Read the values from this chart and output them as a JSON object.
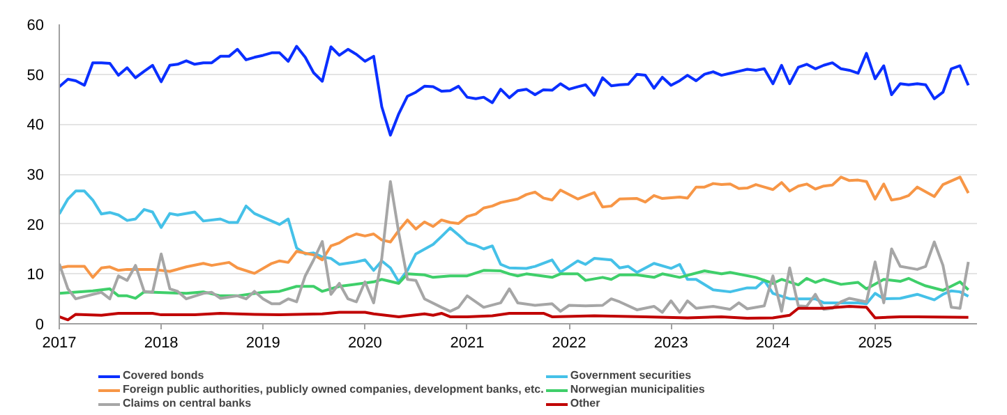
{
  "chart_data": {
    "type": "line",
    "xlim": [
      "2017-01",
      "2026-01"
    ],
    "ylim": [
      0,
      60
    ],
    "yticks": [
      0,
      10,
      20,
      30,
      40,
      50,
      60
    ],
    "xticks": [
      "2017",
      "2018",
      "2019",
      "2020",
      "2021",
      "2022",
      "2023",
      "2024",
      "2025"
    ],
    "grid": "y",
    "legend": "bottom",
    "series": [
      {
        "name": "Covered bonds",
        "color": "#0a2fff",
        "x": [
          "2017-01",
          "2017-02",
          "2017-03",
          "2017-04",
          "2017-05",
          "2017-06",
          "2017-07",
          "2017-08",
          "2017-09",
          "2017-10",
          "2017-11",
          "2017-12",
          "2018-01",
          "2018-02",
          "2018-03",
          "2018-04",
          "2018-05",
          "2018-06",
          "2018-07",
          "2018-08",
          "2018-09",
          "2018-10",
          "2018-11",
          "2018-12",
          "2019-01",
          "2019-02",
          "2019-03",
          "2019-04",
          "2019-05",
          "2019-06",
          "2019-07",
          "2019-08",
          "2019-09",
          "2019-10",
          "2019-11",
          "2019-12",
          "2020-01",
          "2020-02",
          "2020-03",
          "2020-04",
          "2020-05",
          "2020-06",
          "2020-07",
          "2020-08",
          "2020-09",
          "2020-10",
          "2020-11",
          "2020-12",
          "2021-01",
          "2021-02",
          "2021-03",
          "2021-04",
          "2021-05",
          "2021-06",
          "2021-07",
          "2021-08",
          "2021-09",
          "2021-10",
          "2021-11",
          "2021-12",
          "2022-01",
          "2022-02",
          "2022-03",
          "2022-04",
          "2022-05",
          "2022-06",
          "2022-07",
          "2022-08",
          "2022-09",
          "2022-10",
          "2022-11",
          "2022-12",
          "2023-01",
          "2023-02",
          "2023-03",
          "2023-04",
          "2023-05",
          "2023-06",
          "2023-07",
          "2023-08",
          "2023-09",
          "2023-10",
          "2023-11",
          "2023-12",
          "2024-01",
          "2024-02",
          "2024-03",
          "2024-04",
          "2024-05",
          "2024-06",
          "2024-07",
          "2024-08",
          "2024-09",
          "2024-10",
          "2024-11",
          "2024-12",
          "2025-01",
          "2025-02",
          "2025-03",
          "2025-04",
          "2025-05",
          "2025-06",
          "2025-07",
          "2025-08",
          "2025-09",
          "2025-10",
          "2025-11",
          "2025-12"
        ],
        "values": [
          47.5,
          49,
          48.7,
          47.8,
          52.3,
          52.3,
          52.2,
          49.8,
          51.3,
          49.3,
          50.6,
          51.8,
          48.5,
          51.8,
          52,
          52.7,
          52,
          52.3,
          52.3,
          53.6,
          53.6,
          55,
          52.9,
          53.4,
          53.8,
          54.3,
          54.3,
          52.6,
          55.6,
          53.4,
          50.3,
          48.6,
          55.5,
          53.8,
          55,
          54,
          52.6,
          53.6,
          43.5,
          37.8,
          42.1,
          45.6,
          46.4,
          47.6,
          47.5,
          46.6,
          46.7,
          47.6,
          45.4,
          45.1,
          45.4,
          44.3,
          47,
          45.3,
          46.7,
          47,
          45.9,
          46.9,
          46.8,
          48.1,
          47,
          47.5,
          47.9,
          45.8,
          49.3,
          47.7,
          47.9,
          48,
          50,
          49.8,
          47.2,
          49.4,
          47.8,
          48.7,
          49.8,
          48.7,
          50,
          50.5,
          49.8,
          50.2,
          50.6,
          51,
          50.8,
          51.1,
          48.1,
          51.8,
          48.1,
          51.4,
          52,
          51.1,
          51.8,
          52.3,
          51.1,
          50.8,
          50.2,
          54.2,
          49.1,
          51.7,
          45.9,
          48.1,
          47.9,
          48.1,
          47.9,
          45.1,
          46.4,
          51.1,
          51.7,
          47.8
        ]
      },
      {
        "name": "Government securities",
        "color": "#45c1e8",
        "x": [
          "2017-01",
          "2017-02",
          "2017-03",
          "2017-04",
          "2017-05",
          "2017-06",
          "2017-07",
          "2017-08",
          "2017-09",
          "2017-10",
          "2017-11",
          "2017-12",
          "2018-01",
          "2018-02",
          "2018-03",
          "2018-05",
          "2018-06",
          "2018-08",
          "2018-09",
          "2018-10",
          "2018-11",
          "2018-12",
          "2019-03",
          "2019-04",
          "2019-05",
          "2019-06",
          "2019-07",
          "2019-08",
          "2019-09",
          "2019-10",
          "2019-12",
          "2020-01",
          "2020-02",
          "2020-03",
          "2020-04",
          "2020-05",
          "2020-06",
          "2020-07",
          "2020-09",
          "2020-10",
          "2020-11",
          "2020-12",
          "2021-01",
          "2021-02",
          "2021-03",
          "2021-04",
          "2021-05",
          "2021-06",
          "2021-08",
          "2021-09",
          "2021-11",
          "2021-12",
          "2022-02",
          "2022-03",
          "2022-04",
          "2022-06",
          "2022-07",
          "2022-08",
          "2022-09",
          "2022-11",
          "2023-01",
          "2023-02",
          "2023-03",
          "2023-04",
          "2023-06",
          "2023-08",
          "2023-10",
          "2023-11",
          "2023-12",
          "2024-01",
          "2024-03",
          "2024-06",
          "2024-07",
          "2024-11",
          "2024-12",
          "2025-01",
          "2025-02",
          "2025-04",
          "2025-06",
          "2025-08",
          "2025-09",
          "2025-10",
          "2025-11",
          "2025-12"
        ],
        "values": [
          22,
          25,
          26.6,
          26.6,
          24.8,
          22,
          22.3,
          21.8,
          20.7,
          21,
          22.9,
          22.4,
          19.3,
          22.1,
          21.8,
          22.4,
          20.6,
          21,
          20.3,
          20.3,
          23.6,
          22.1,
          19.9,
          21,
          15.2,
          14,
          14.2,
          13.4,
          13.1,
          11.9,
          12.4,
          12.8,
          10.7,
          12.6,
          11.2,
          8.4,
          10.7,
          14,
          15.9,
          17.5,
          19.2,
          17.8,
          16.2,
          15.7,
          15,
          15.6,
          11.9,
          11.2,
          11.1,
          11.5,
          12.8,
          10.3,
          12.6,
          11.9,
          13.1,
          12.8,
          11.2,
          11.5,
          10.3,
          12.1,
          11.1,
          11.9,
          8.9,
          8.9,
          6.8,
          6.4,
          7.2,
          7.2,
          8.7,
          6.1,
          5,
          5,
          4.2,
          4.2,
          4,
          6.1,
          5,
          5.1,
          5.9,
          4.8,
          5.9,
          6.6,
          6.4,
          5.5
        ]
      },
      {
        "name": "Foreign public authorities, publicly owned companies, development banks, etc.",
        "color": "#f79646",
        "x": [
          "2017-01",
          "2017-02",
          "2017-04",
          "2017-05",
          "2017-06",
          "2017-07",
          "2017-08",
          "2017-09",
          "2017-12",
          "2018-02",
          "2018-04",
          "2018-06",
          "2018-07",
          "2018-09",
          "2018-10",
          "2018-12",
          "2019-02",
          "2019-03",
          "2019-04",
          "2019-05",
          "2019-07",
          "2019-08",
          "2019-09",
          "2019-10",
          "2019-11",
          "2019-12",
          "2020-01",
          "2020-02",
          "2020-03",
          "2020-04",
          "2020-05",
          "2020-06",
          "2020-07",
          "2020-08",
          "2020-09",
          "2020-10",
          "2020-11",
          "2020-12",
          "2021-01",
          "2021-02",
          "2021-03",
          "2021-04",
          "2021-05",
          "2021-07",
          "2021-08",
          "2021-09",
          "2021-10",
          "2021-11",
          "2021-12",
          "2022-02",
          "2022-04",
          "2022-05",
          "2022-06",
          "2022-07",
          "2022-09",
          "2022-10",
          "2022-11",
          "2022-12",
          "2023-02",
          "2023-03",
          "2023-04",
          "2023-05",
          "2023-06",
          "2023-07",
          "2023-08",
          "2023-09",
          "2023-10",
          "2023-11",
          "2023-12",
          "2024-01",
          "2024-02",
          "2024-03",
          "2024-04",
          "2024-05",
          "2024-06",
          "2024-07",
          "2024-08",
          "2024-09",
          "2024-10",
          "2024-11",
          "2024-12",
          "2025-01",
          "2025-02",
          "2025-03",
          "2025-04",
          "2025-05",
          "2025-06",
          "2025-08",
          "2025-09",
          "2025-11",
          "2025-12"
        ],
        "values": [
          11.2,
          11.5,
          11.5,
          9.3,
          11.2,
          11.4,
          10.7,
          10.9,
          10.9,
          10.5,
          11.4,
          12.1,
          11.7,
          12.3,
          11.2,
          10.1,
          12.1,
          12.6,
          12.3,
          14.5,
          13.8,
          12.8,
          15.6,
          16.2,
          17.3,
          18,
          17.6,
          18,
          16.8,
          16.4,
          18.7,
          20.8,
          19,
          20.4,
          19.5,
          20.8,
          20.3,
          20.1,
          21.5,
          22,
          23.2,
          23.6,
          24.3,
          25,
          25.9,
          26.4,
          25.2,
          24.8,
          26.8,
          25,
          26.3,
          23.4,
          23.6,
          25,
          25.1,
          24.4,
          25.7,
          25.1,
          25.4,
          25.2,
          27.4,
          27.4,
          28.1,
          27.9,
          28,
          27.1,
          27.2,
          27.9,
          27.4,
          26.9,
          28.3,
          26.6,
          27.6,
          28,
          27,
          27.6,
          27.8,
          29.4,
          28.7,
          28.8,
          28.5,
          25,
          28,
          24.8,
          25.1,
          25.7,
          27.4,
          25.5,
          27.9,
          29.4,
          26.2
        ]
      },
      {
        "name": "Norwegian municipalities",
        "color": "#3fcf6a",
        "x": [
          "2017-01",
          "2017-05",
          "2017-07",
          "2017-08",
          "2017-09",
          "2017-10",
          "2017-11",
          "2018-04",
          "2018-06",
          "2018-08",
          "2018-10",
          "2019-01",
          "2019-03",
          "2019-05",
          "2019-07",
          "2019-08",
          "2019-10",
          "2020-02",
          "2020-03",
          "2020-05",
          "2020-06",
          "2020-08",
          "2020-09",
          "2020-11",
          "2021-01",
          "2021-03",
          "2021-05",
          "2021-06",
          "2021-07",
          "2021-08",
          "2021-11",
          "2021-12",
          "2022-02",
          "2022-03",
          "2022-05",
          "2022-06",
          "2022-07",
          "2022-09",
          "2022-11",
          "2022-12",
          "2023-02",
          "2023-05",
          "2023-07",
          "2023-08",
          "2023-11",
          "2024-01",
          "2024-02",
          "2024-04",
          "2024-05",
          "2024-06",
          "2024-07",
          "2024-09",
          "2024-11",
          "2024-12",
          "2025-02",
          "2025-04",
          "2025-05",
          "2025-06",
          "2025-07",
          "2025-09",
          "2025-11",
          "2025-12"
        ],
        "values": [
          6.1,
          6.6,
          7,
          5.6,
          5.6,
          5.1,
          6.4,
          6.1,
          6.4,
          5.6,
          5.6,
          6.3,
          6.5,
          7.5,
          7.5,
          6.5,
          7.5,
          8.4,
          8.9,
          8.1,
          10,
          9.8,
          9.3,
          9.6,
          9.6,
          10.7,
          10.6,
          10,
          9.6,
          10,
          9.3,
          10,
          10,
          8.7,
          9.3,
          8.9,
          9.8,
          9.8,
          9.3,
          10,
          9.3,
          10.6,
          10,
          10.3,
          9.3,
          8.1,
          8.9,
          7.8,
          9.1,
          8.3,
          8.9,
          7.9,
          8.3,
          7,
          8.9,
          8.5,
          9.1,
          8.3,
          7.6,
          6.7,
          8.4,
          6.8
        ]
      },
      {
        "name": "Claims on central banks",
        "color": "#a6a6a6",
        "x": [
          "2017-01",
          "2017-02",
          "2017-03",
          "2017-05",
          "2017-06",
          "2017-07",
          "2017-08",
          "2017-09",
          "2017-10",
          "2017-11",
          "2017-12",
          "2018-01",
          "2018-02",
          "2018-03",
          "2018-04",
          "2018-06",
          "2018-07",
          "2018-08",
          "2018-10",
          "2018-11",
          "2018-12",
          "2019-01",
          "2019-02",
          "2019-03",
          "2019-04",
          "2019-05",
          "2019-06",
          "2019-07",
          "2019-08",
          "2019-09",
          "2019-10",
          "2019-11",
          "2019-12",
          "2020-01",
          "2020-02",
          "2020-03",
          "2020-04",
          "2020-05",
          "2020-06",
          "2020-07",
          "2020-08",
          "2020-10",
          "2020-11",
          "2020-12",
          "2021-01",
          "2021-03",
          "2021-05",
          "2021-06",
          "2021-07",
          "2021-09",
          "2021-11",
          "2021-12",
          "2022-01",
          "2022-03",
          "2022-05",
          "2022-06",
          "2022-07",
          "2022-09",
          "2022-11",
          "2022-12",
          "2023-01",
          "2023-02",
          "2023-03",
          "2023-04",
          "2023-06",
          "2023-08",
          "2023-09",
          "2023-10",
          "2023-12",
          "2024-01",
          "2024-02",
          "2024-03",
          "2024-04",
          "2024-05",
          "2024-06",
          "2024-07",
          "2024-08",
          "2024-09",
          "2024-10",
          "2024-12",
          "2025-01",
          "2025-02",
          "2025-03",
          "2025-04",
          "2025-06",
          "2025-07",
          "2025-08",
          "2025-09",
          "2025-10",
          "2025-11",
          "2025-12"
        ],
        "values": [
          12,
          7,
          5,
          5.9,
          6.3,
          5,
          9.6,
          8.7,
          11.7,
          6.5,
          6.3,
          14,
          7,
          6.5,
          5,
          6.1,
          6.3,
          5.1,
          5.6,
          5,
          6.5,
          5,
          4,
          4,
          5,
          4.4,
          9.6,
          12.8,
          16.5,
          5.9,
          8.1,
          5,
          4.4,
          8.4,
          4.2,
          13.1,
          28.5,
          18.2,
          8.9,
          8.7,
          5,
          3.3,
          2.5,
          3.3,
          5.6,
          3.3,
          4.2,
          7,
          4.2,
          3.7,
          4,
          2.5,
          3.7,
          3.6,
          3.7,
          5,
          4.4,
          2.8,
          3.5,
          2.3,
          4.6,
          2.3,
          4.6,
          3.1,
          3.5,
          2.9,
          4.2,
          3,
          3.6,
          9.6,
          2.5,
          11.2,
          3.6,
          3.5,
          5.9,
          2.9,
          3.1,
          4.4,
          5.1,
          4.4,
          12.4,
          4.2,
          15,
          11.5,
          10.9,
          11.5,
          16.4,
          11.7,
          3.3,
          3.1,
          12.4
        ]
      },
      {
        "name": "Other",
        "color": "#c00000",
        "x": [
          "2017-01",
          "2017-02",
          "2017-03",
          "2017-06",
          "2017-08",
          "2017-12",
          "2018-01",
          "2018-05",
          "2018-08",
          "2018-12",
          "2019-03",
          "2019-08",
          "2019-10",
          "2020-01",
          "2020-02",
          "2020-05",
          "2020-06",
          "2020-08",
          "2020-09",
          "2020-10",
          "2020-11",
          "2021-01",
          "2021-04",
          "2021-06",
          "2021-10",
          "2021-11",
          "2022-04",
          "2022-10",
          "2023-03",
          "2023-07",
          "2023-10",
          "2024-01",
          "2024-03",
          "2024-04",
          "2024-07",
          "2024-10",
          "2024-12",
          "2025-01",
          "2025-04",
          "2025-06",
          "2025-12"
        ],
        "values": [
          1.4,
          0.8,
          1.9,
          1.7,
          2.1,
          2.1,
          1.8,
          1.8,
          2.1,
          1.9,
          1.8,
          2,
          2.3,
          2.3,
          2,
          1.4,
          1.6,
          2,
          1.7,
          2.1,
          1.4,
          1.4,
          1.6,
          2.1,
          2.1,
          1.4,
          1.6,
          1.4,
          1.2,
          1.4,
          1.1,
          1.2,
          1.7,
          3.1,
          3.1,
          3.5,
          3.3,
          1.2,
          1.4,
          1.4,
          1.3
        ]
      }
    ]
  }
}
